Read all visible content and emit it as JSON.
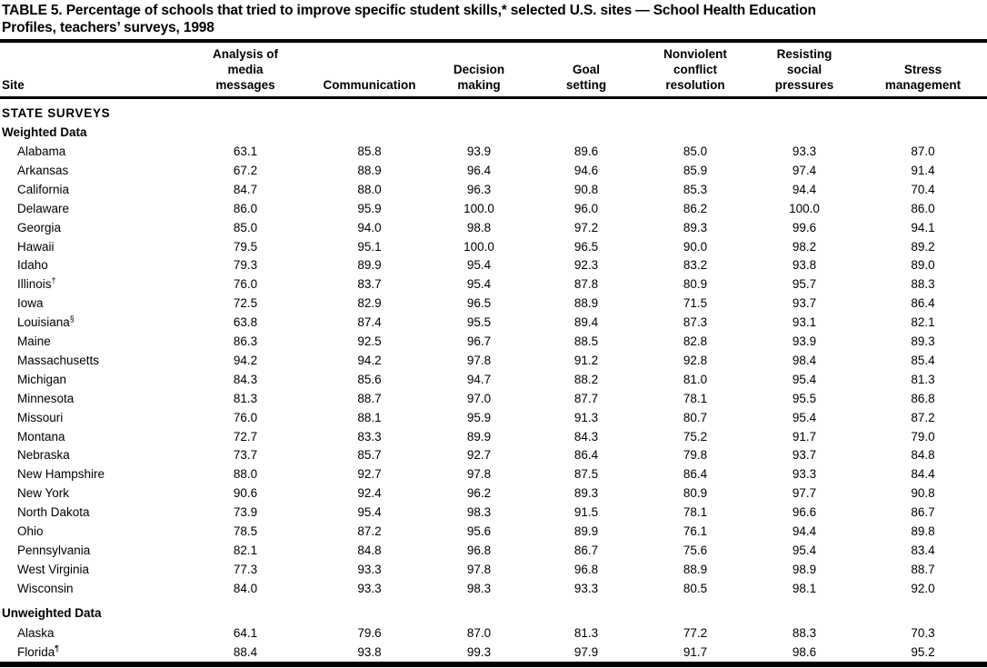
{
  "page": {
    "background": "#ffffff",
    "text_color": "#000000"
  },
  "table": {
    "title_lines": [
      "TABLE 5. Percentage of schools that tried to improve specific student skills,* selected U.S. sites — School Health Education",
      "Profiles, teachers’ surveys, 1998"
    ],
    "columns": [
      "Site",
      "Analysis of media messages",
      "Communication",
      "Decision making",
      "Goal setting",
      "Nonviolent conflict resolution",
      "Resisting social pressures",
      "Stress management"
    ],
    "sections": [
      {
        "label": "STATE SURVEYS",
        "style": "group",
        "rows": []
      },
      {
        "label": "Weighted Data",
        "style": "sub",
        "rows": [
          {
            "site": "Alabama",
            "marker": "",
            "values": [
              "63.1",
              "85.8",
              "93.9",
              "89.6",
              "85.0",
              "93.3",
              "87.0"
            ]
          },
          {
            "site": "Arkansas",
            "marker": "",
            "values": [
              "67.2",
              "88.9",
              "96.4",
              "94.6",
              "85.9",
              "97.4",
              "91.4"
            ]
          },
          {
            "site": "California",
            "marker": "",
            "values": [
              "84.7",
              "88.0",
              "96.3",
              "90.8",
              "85.3",
              "94.4",
              "70.4"
            ]
          },
          {
            "site": "Delaware",
            "marker": "",
            "values": [
              "86.0",
              "95.9",
              "100.0",
              "96.0",
              "86.2",
              "100.0",
              "86.0"
            ]
          },
          {
            "site": "Georgia",
            "marker": "",
            "values": [
              "85.0",
              "94.0",
              "98.8",
              "97.2",
              "89.3",
              "99.6",
              "94.1"
            ]
          },
          {
            "site": "Hawaii",
            "marker": "",
            "values": [
              "79.5",
              "95.1",
              "100.0",
              "96.5",
              "90.0",
              "98.2",
              "89.2"
            ]
          },
          {
            "site": "Idaho",
            "marker": "",
            "values": [
              "79.3",
              "89.9",
              "95.4",
              "92.3",
              "83.2",
              "93.8",
              "89.0"
            ]
          },
          {
            "site": "Illinois",
            "marker": "†",
            "values": [
              "76.0",
              "83.7",
              "95.4",
              "87.8",
              "80.9",
              "95.7",
              "88.3"
            ]
          },
          {
            "site": "Iowa",
            "marker": "",
            "values": [
              "72.5",
              "82.9",
              "96.5",
              "88.9",
              "71.5",
              "93.7",
              "86.4"
            ]
          },
          {
            "site": "Louisiana",
            "marker": "§",
            "values": [
              "63.8",
              "87.4",
              "95.5",
              "89.4",
              "87.3",
              "93.1",
              "82.1"
            ]
          },
          {
            "site": "Maine",
            "marker": "",
            "values": [
              "86.3",
              "92.5",
              "96.7",
              "88.5",
              "82.8",
              "93.9",
              "89.3"
            ]
          },
          {
            "site": "Massachusetts",
            "marker": "",
            "values": [
              "94.2",
              "94.2",
              "97.8",
              "91.2",
              "92.8",
              "98.4",
              "85.4"
            ]
          },
          {
            "site": "Michigan",
            "marker": "",
            "values": [
              "84.3",
              "85.6",
              "94.7",
              "88.2",
              "81.0",
              "95.4",
              "81.3"
            ]
          },
          {
            "site": "Minnesota",
            "marker": "",
            "values": [
              "81.3",
              "88.7",
              "97.0",
              "87.7",
              "78.1",
              "95.5",
              "86.8"
            ]
          },
          {
            "site": "Missouri",
            "marker": "",
            "values": [
              "76.0",
              "88.1",
              "95.9",
              "91.3",
              "80.7",
              "95.4",
              "87.2"
            ]
          },
          {
            "site": "Montana",
            "marker": "",
            "values": [
              "72.7",
              "83.3",
              "89.9",
              "84.3",
              "75.2",
              "91.7",
              "79.0"
            ]
          },
          {
            "site": "Nebraska",
            "marker": "",
            "values": [
              "73.7",
              "85.7",
              "92.7",
              "86.4",
              "79.8",
              "93.7",
              "84.8"
            ]
          },
          {
            "site": "New Hampshire",
            "marker": "",
            "values": [
              "88.0",
              "92.7",
              "97.8",
              "87.5",
              "86.4",
              "93.3",
              "84.4"
            ]
          },
          {
            "site": "New York",
            "marker": "",
            "values": [
              "90.6",
              "92.4",
              "96.2",
              "89.3",
              "80.9",
              "97.7",
              "90.8"
            ]
          },
          {
            "site": "North Dakota",
            "marker": "",
            "values": [
              "73.9",
              "95.4",
              "98.3",
              "91.5",
              "78.1",
              "96.6",
              "86.7"
            ]
          },
          {
            "site": "Ohio",
            "marker": "",
            "values": [
              "78.5",
              "87.2",
              "95.6",
              "89.9",
              "76.1",
              "94.4",
              "89.8"
            ]
          },
          {
            "site": "Pennsylvania",
            "marker": "",
            "values": [
              "82.1",
              "84.8",
              "96.8",
              "86.7",
              "75.6",
              "95.4",
              "83.4"
            ]
          },
          {
            "site": "West Virginia",
            "marker": "",
            "values": [
              "77.3",
              "93.3",
              "97.8",
              "96.8",
              "88.9",
              "98.9",
              "88.7"
            ]
          },
          {
            "site": "Wisconsin",
            "marker": "",
            "values": [
              "84.0",
              "93.3",
              "98.3",
              "93.3",
              "80.5",
              "98.1",
              "92.0"
            ]
          }
        ]
      },
      {
        "label": "Unweighted Data",
        "style": "sub gap",
        "rows": [
          {
            "site": "Alaska",
            "marker": "",
            "values": [
              "64.1",
              "79.6",
              "87.0",
              "81.3",
              "77.2",
              "88.3",
              "70.3"
            ]
          },
          {
            "site": "Florida",
            "marker": "¶",
            "values": [
              "88.4",
              "93.8",
              "99.3",
              "97.9",
              "91.7",
              "98.6",
              "95.2"
            ]
          }
        ]
      }
    ]
  }
}
